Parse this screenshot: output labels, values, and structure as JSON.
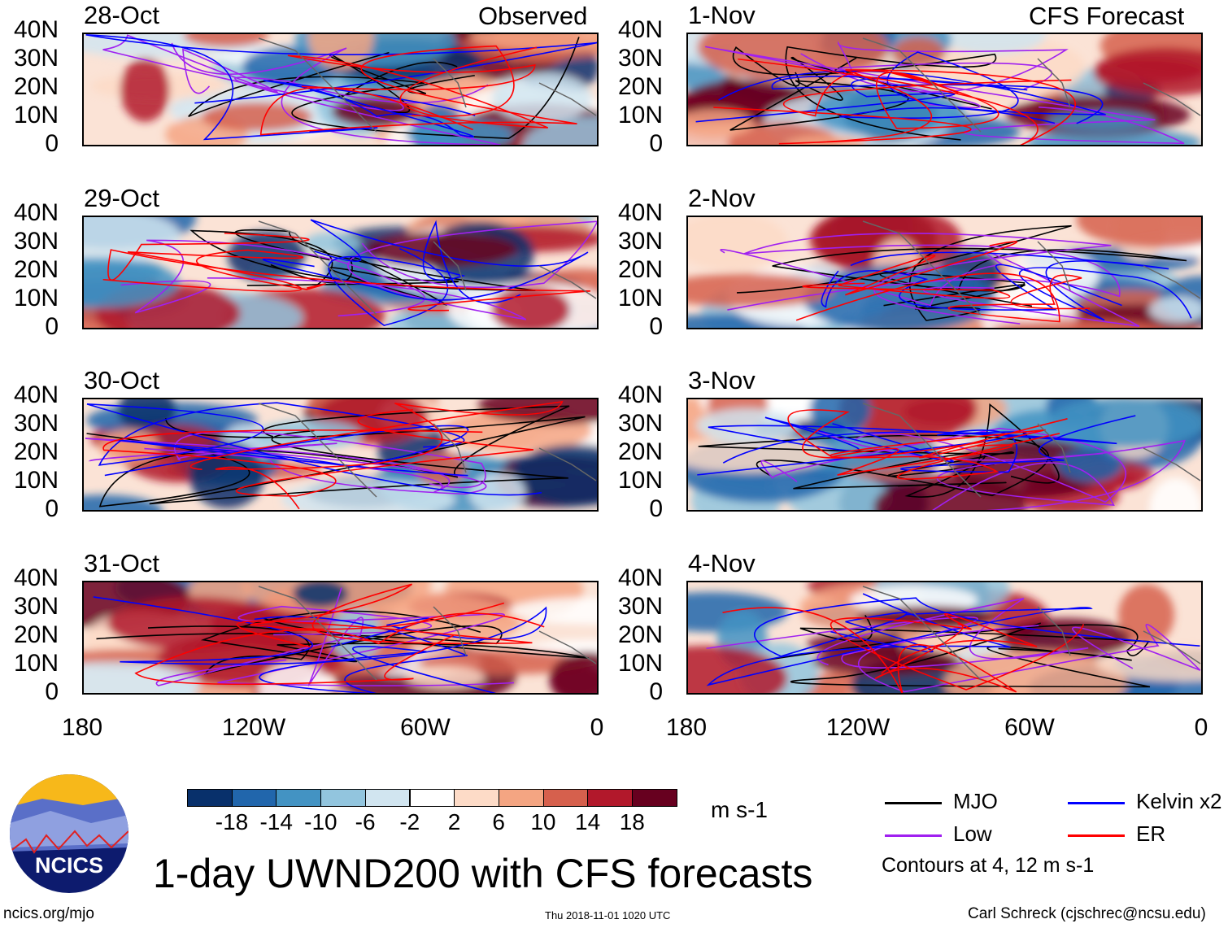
{
  "figure_title": "1-day UWND200 with CFS forecasts",
  "observed_label": "Observed",
  "forecast_label": "CFS Forecast",
  "panels": {
    "observed": [
      "28-Oct",
      "29-Oct",
      "30-Oct",
      "31-Oct"
    ],
    "forecast": [
      "1-Nov",
      "2-Nov",
      "3-Nov",
      "4-Nov"
    ]
  },
  "lat_labels": [
    "40N",
    "30N",
    "20N",
    "10N",
    "0"
  ],
  "lon_labels": [
    "180",
    "120W",
    "60W",
    "0"
  ],
  "colorbar": {
    "unit": "m s-1",
    "levels": [
      "-18",
      "-14",
      "-10",
      "-6",
      "-2",
      "2",
      "6",
      "10",
      "14",
      "18"
    ],
    "colors": [
      "#08306b",
      "#2166ac",
      "#4393c3",
      "#92c5de",
      "#d1e5f0",
      "#ffffff",
      "#fddbc7",
      "#f4a582",
      "#d6604d",
      "#b2182b",
      "#67001f"
    ]
  },
  "legend": {
    "items": [
      {
        "label": "MJO",
        "color": "#000000"
      },
      {
        "label": "Low",
        "color": "#a020f0"
      },
      {
        "label": "Kelvin x2",
        "color": "#0000ff"
      },
      {
        "label": "ER",
        "color": "#ff0000"
      }
    ],
    "note": "Contours at 4, 12 m s-1"
  },
  "logo": "NCICS",
  "footer": {
    "left": "ncics.org/mjo",
    "center": "Thu 2018-11-01 1020 UTC",
    "right": "Carl Schreck (cjschrec@ncsu.edu)"
  }
}
